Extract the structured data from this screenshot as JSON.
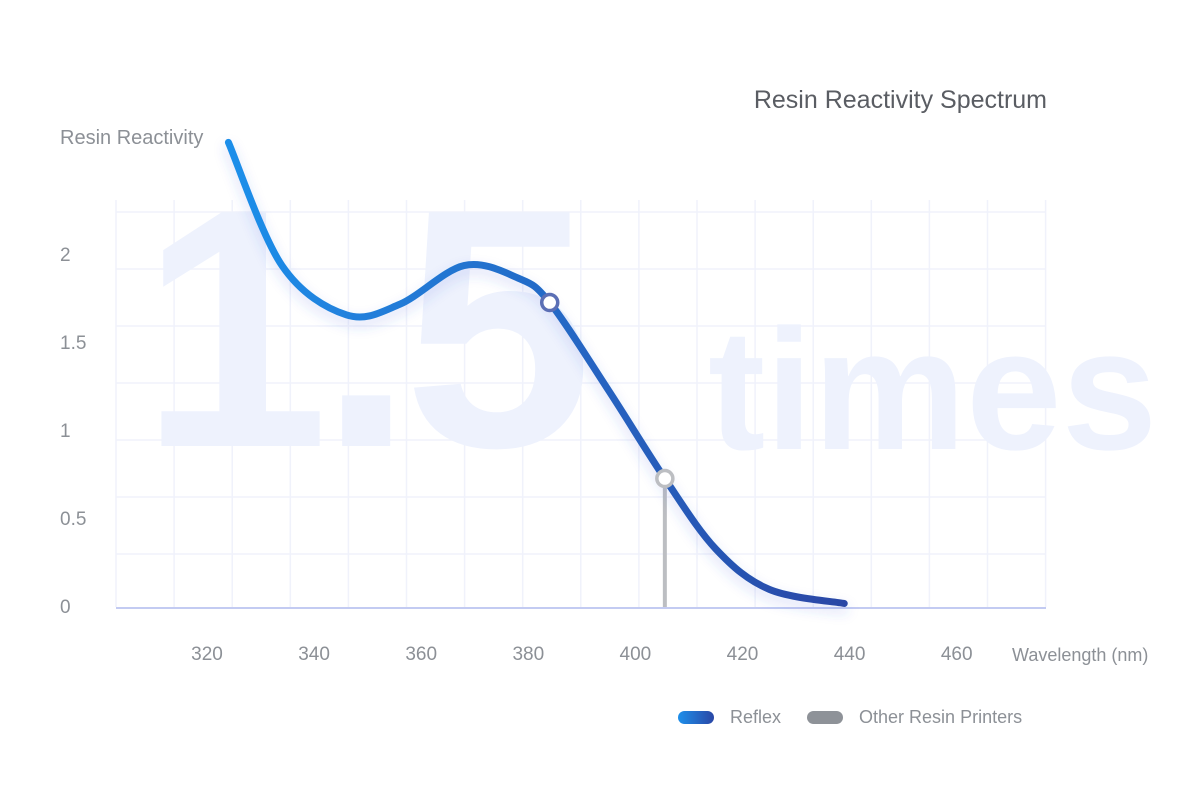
{
  "chart_data": {
    "type": "line",
    "title": "Resin Reactivity Spectrum",
    "ylabel": "Resin Reactivity",
    "xlabel": "Wavelength (nm)",
    "watermark": {
      "number": "1.5",
      "word": "times"
    },
    "xlim": [
      310,
      470
    ],
    "ylim": [
      0,
      2.6
    ],
    "x_ticks": [
      320,
      340,
      360,
      380,
      400,
      420,
      440,
      460
    ],
    "y_ticks": [
      0,
      0.5,
      1,
      1.5,
      2
    ],
    "y_tick_labels": [
      "0",
      "0.5",
      "1",
      "1.5",
      "2"
    ],
    "grid": true,
    "legend_position": "bottom-right",
    "series": [
      {
        "name": "Reflex",
        "x": [
          324,
          334,
          346,
          356,
          368,
          378,
          384,
          395,
          405.5,
          415,
          425,
          439
        ],
        "y": [
          2.64,
          1.94,
          1.66,
          1.72,
          1.94,
          1.87,
          1.73,
          1.23,
          0.73,
          0.33,
          0.1,
          0.02
        ]
      }
    ],
    "markers": [
      {
        "series": "Reflex",
        "x": 384,
        "y": 1.73,
        "color": "#5b6fb5"
      },
      {
        "series": "Other Resin Printers",
        "x": 405.5,
        "y": 0.73,
        "color": "#bcbec2"
      }
    ],
    "legend": [
      {
        "name": "Reflex",
        "color_start": "#1e8fea",
        "color_end": "#2a47a6"
      },
      {
        "name": "Other Resin Printers",
        "color": "#8e9298"
      }
    ]
  }
}
